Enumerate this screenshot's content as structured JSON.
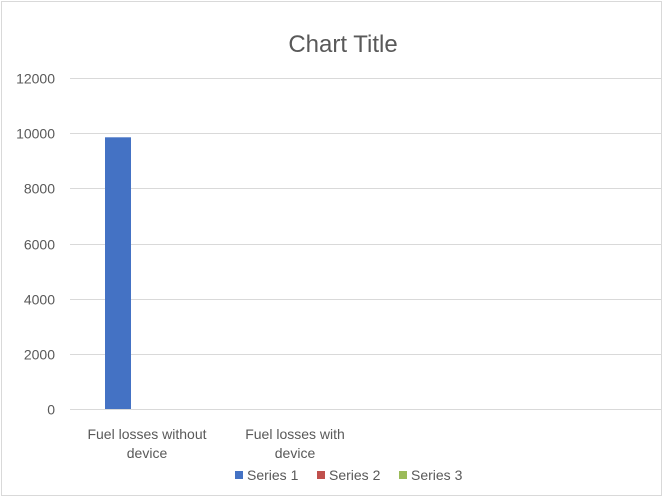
{
  "chart_data": {
    "type": "bar",
    "title": "Chart Title",
    "categories": [
      [
        "Fuel losses without",
        "device"
      ],
      [
        "Fuel losses with",
        "device"
      ]
    ],
    "series": [
      {
        "name": "Series 1",
        "values": [
          9850,
          0
        ],
        "color": "#4472c4"
      },
      {
        "name": "Series 2",
        "values": [
          0,
          0
        ],
        "color": "#c0504d"
      },
      {
        "name": "Series 3",
        "values": [
          0,
          0
        ],
        "color": "#9bbb59"
      }
    ],
    "ylim": [
      0,
      12000
    ],
    "yticks": [
      "0",
      "2000",
      "4000",
      "6000",
      "8000",
      "10000",
      "12000"
    ],
    "grid": true,
    "legend_position": "bottom"
  }
}
